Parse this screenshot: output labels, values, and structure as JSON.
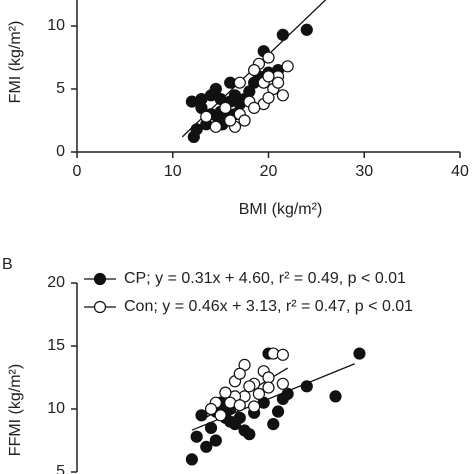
{
  "chart_data": [
    {
      "type": "scatter",
      "panel_label": null,
      "x_label": "BMI (kg/m²)",
      "y_label": "FMI (kg/m²)",
      "xlim": [
        0,
        40
      ],
      "xticks": [
        0,
        10,
        20,
        30,
        40
      ],
      "ylim": [
        0,
        15
      ],
      "yticks": [
        0,
        5,
        10
      ],
      "series": [
        {
          "name": null,
          "color": "#111111",
          "filled": true,
          "x": [
            24,
            21.5,
            19.5,
            21,
            20,
            19,
            18.5,
            16,
            14.5,
            16.5,
            17.5,
            12,
            13,
            14,
            15,
            15.5,
            14.8,
            13.5,
            12.5,
            12.2,
            16,
            17,
            15,
            14,
            18,
            13,
            15.2,
            16.5
          ],
          "values": [
            9.7,
            9.3,
            8,
            6.5,
            6.3,
            6,
            5.5,
            5.5,
            5,
            4.5,
            4.2,
            4,
            3.5,
            3,
            3.2,
            2.8,
            2.5,
            2.2,
            1.8,
            1.2,
            4,
            3.8,
            4.2,
            4.5,
            4.8,
            4.2,
            2.2,
            3
          ]
        },
        {
          "name": null,
          "color": "#111111",
          "filled": false,
          "x": [
            21,
            22,
            20,
            19,
            18.5,
            20.5,
            21.5,
            19.5,
            18,
            17,
            16.5,
            17.5,
            18.5,
            19.5,
            20,
            14.5,
            15.5,
            16,
            17,
            20,
            21,
            13.5
          ],
          "values": [
            6,
            6.8,
            7.5,
            7,
            6.5,
            5,
            4.5,
            3.8,
            4,
            3,
            2,
            2.5,
            3.5,
            5.5,
            4.3,
            2,
            3.5,
            2.5,
            5.5,
            6,
            5.5,
            2.8
          ]
        }
      ],
      "fits": [
        {
          "x": [
            11,
            26
          ],
          "y": [
            1.2,
            12.1
          ]
        }
      ]
    },
    {
      "type": "scatter",
      "panel_label": "B",
      "x_label": null,
      "y_label": "FFMI (kg/m²)",
      "xlim": [
        0,
        40
      ],
      "xticks": [],
      "ylim": [
        5,
        20
      ],
      "yticks": [
        5,
        10,
        15,
        20
      ],
      "series": [
        {
          "name": "CP; y = 0.31x + 4.60, r² = 0.49, p < 0.01",
          "color": "#111111",
          "filled": true,
          "x": [
            29.5,
            27,
            24,
            22,
            20,
            21.5,
            21,
            19.5,
            18.5,
            17.5,
            17,
            16,
            15,
            14.5,
            15.5,
            14,
            13,
            12.5,
            12,
            13.5,
            14.5,
            16.5,
            15,
            18,
            20.5,
            16
          ],
          "values": [
            14.4,
            11,
            11.8,
            11.2,
            14.4,
            10.8,
            9.8,
            10.5,
            9.7,
            8.3,
            9.3,
            10,
            10.5,
            9.8,
            9.3,
            8.5,
            9.5,
            7.8,
            6,
            7,
            7.5,
            8.8,
            10,
            8,
            8.8,
            9
          ]
        },
        {
          "name": "Con; y = 0.46x + 3.13, r² = 0.47, p < 0.01",
          "color": "#111111",
          "filled": false,
          "x": [
            20.5,
            21.5,
            17.5,
            16.5,
            17,
            18.5,
            19.5,
            20,
            18,
            17.5,
            16.5,
            15.5,
            14.5,
            14,
            16,
            19,
            20,
            15,
            17,
            21.5,
            18.5
          ],
          "values": [
            14.4,
            14.3,
            13.5,
            12.2,
            12.8,
            12,
            13,
            12.5,
            11.8,
            11,
            11,
            11.3,
            10.5,
            10,
            10.5,
            11.2,
            11.7,
            9.5,
            10.3,
            12,
            10.2
          ]
        }
      ],
      "fits": [
        {
          "x": [
            12,
            29
          ],
          "y": [
            8.32,
            13.59
          ]
        },
        {
          "x": [
            13,
            22
          ],
          "y": [
            9.11,
            13.25
          ]
        }
      ]
    }
  ]
}
